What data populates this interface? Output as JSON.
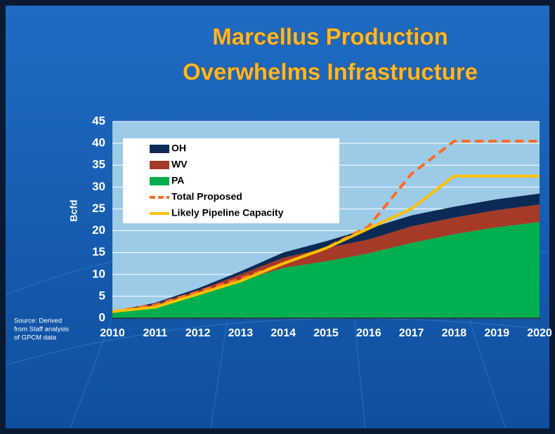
{
  "chart_data": {
    "type": "stacked-area",
    "title": [
      "Marcellus Production",
      "Overwhelms Infrastructure"
    ],
    "y_label": "Bcfd",
    "source": [
      "Source: Derived",
      "from Staff analysis",
      "of GPCM data"
    ],
    "x": [
      2010,
      2011,
      2012,
      2013,
      2014,
      2015,
      2016,
      2017,
      2018,
      2019,
      2020
    ],
    "xlim": [
      2010,
      2020
    ],
    "xticks": [
      2010,
      2011,
      2012,
      2013,
      2014,
      2015,
      2016,
      2017,
      2018,
      2019,
      2020
    ],
    "ylim": [
      0,
      45
    ],
    "yticks": [
      0,
      5,
      10,
      15,
      20,
      25,
      30,
      35,
      40,
      45
    ],
    "grid": true,
    "series": [
      {
        "name": "OH",
        "color": "#0b2a55",
        "stack": true,
        "values": [
          0,
          0.3,
          0.5,
          0.7,
          1.2,
          1.6,
          2.5,
          2.5,
          2.5,
          2.5,
          2.5
        ]
      },
      {
        "name": "WV",
        "color": "#a63a28",
        "stack": true,
        "values": [
          0,
          0.7,
          0.8,
          1.5,
          2.3,
          3,
          3.2,
          3.8,
          3.8,
          3.9,
          4
        ]
      },
      {
        "name": "PA",
        "color": "#00b050",
        "stack": true,
        "values": [
          1.5,
          2.5,
          5.5,
          8.5,
          11.5,
          13,
          14.8,
          17.2,
          19.2,
          20.8,
          22
        ]
      },
      {
        "name": "Total Proposed",
        "color": "#ff6a28",
        "dashed": true,
        "values": [
          1.5,
          3,
          6,
          9,
          12.5,
          16,
          21,
          33,
          40.5,
          40.5,
          40.5
        ]
      },
      {
        "name": "Likely Pipeline Capacity",
        "color": "#ffc000",
        "values": [
          1.5,
          2.5,
          5.5,
          8.5,
          12.5,
          16,
          20.5,
          25,
          32.5,
          32.5,
          32.5
        ]
      }
    ]
  }
}
